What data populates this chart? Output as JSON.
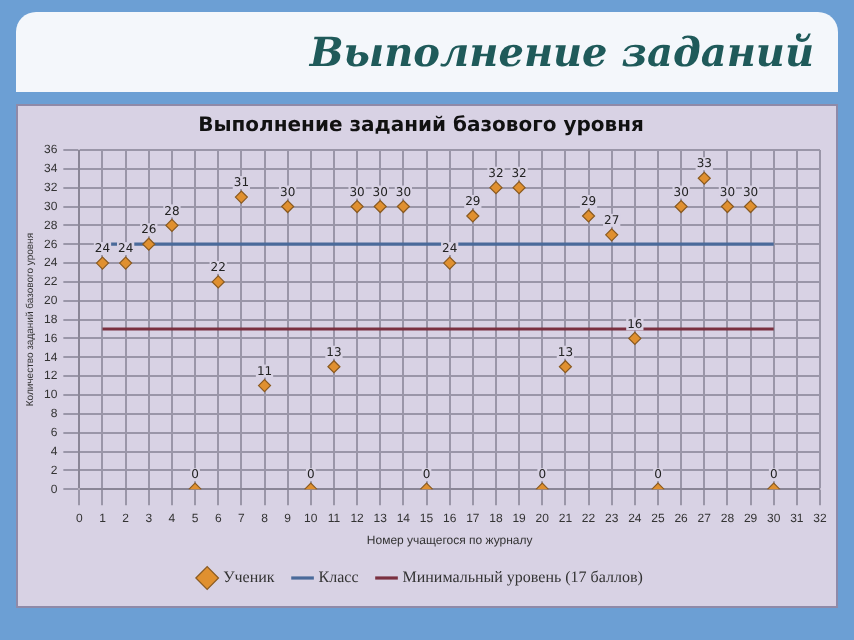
{
  "chart_data": {
    "type": "scatter",
    "title": "Выполнение заданий",
    "subtitle": "Выполнение заданий базового уровня",
    "xlabel": "Номер учащегося по журналу",
    "ylabel": "Количество заданий базового уровня",
    "series": [
      {
        "name": "Ученик",
        "type": "scatter",
        "color": "#e0902f",
        "marker": "diamond",
        "x": [
          1,
          2,
          3,
          4,
          5,
          6,
          7,
          8,
          9,
          10,
          11,
          12,
          13,
          14,
          15,
          16,
          17,
          18,
          19,
          20,
          21,
          22,
          23,
          24,
          25,
          26,
          27,
          28,
          29,
          30
        ],
        "values": [
          24,
          24,
          26,
          28,
          0,
          22,
          31,
          11,
          30,
          0,
          13,
          30,
          30,
          30,
          0,
          24,
          29,
          32,
          32,
          0,
          13,
          29,
          27,
          16,
          0,
          30,
          33,
          30,
          30,
          0
        ],
        "value_labels": [
          "24",
          "24",
          "26",
          "28",
          "0",
          "22",
          "31",
          "11",
          "30",
          "0",
          "13",
          "30",
          "30",
          "30",
          "0",
          "24",
          "29",
          "32",
          "32",
          "0",
          "13",
          "29",
          "27",
          "16",
          "0",
          "30",
          "33",
          "30",
          "30",
          "0"
        ]
      },
      {
        "name": "Класс",
        "type": "line",
        "color": "#4a6a9a",
        "marker": "none",
        "x": [
          1,
          30
        ],
        "values": [
          26,
          26
        ]
      },
      {
        "name": "Минимальный уровень (17 баллов)",
        "type": "line",
        "color": "#7a3040",
        "marker": "none",
        "x": [
          1,
          30
        ],
        "values": [
          17,
          17
        ]
      }
    ],
    "xlim": [
      0,
      32
    ],
    "xticks": [
      0,
      1,
      2,
      3,
      4,
      5,
      6,
      7,
      8,
      9,
      10,
      11,
      12,
      13,
      14,
      15,
      16,
      17,
      18,
      19,
      20,
      21,
      22,
      23,
      24,
      25,
      26,
      27,
      28,
      29,
      30,
      31,
      32
    ],
    "ylim": [
      0,
      36
    ],
    "yticks": [
      0,
      2,
      4,
      6,
      8,
      10,
      12,
      14,
      16,
      18,
      20,
      22,
      24,
      26,
      28,
      30,
      32,
      34,
      36
    ],
    "grid": true,
    "legend": "bottom"
  }
}
